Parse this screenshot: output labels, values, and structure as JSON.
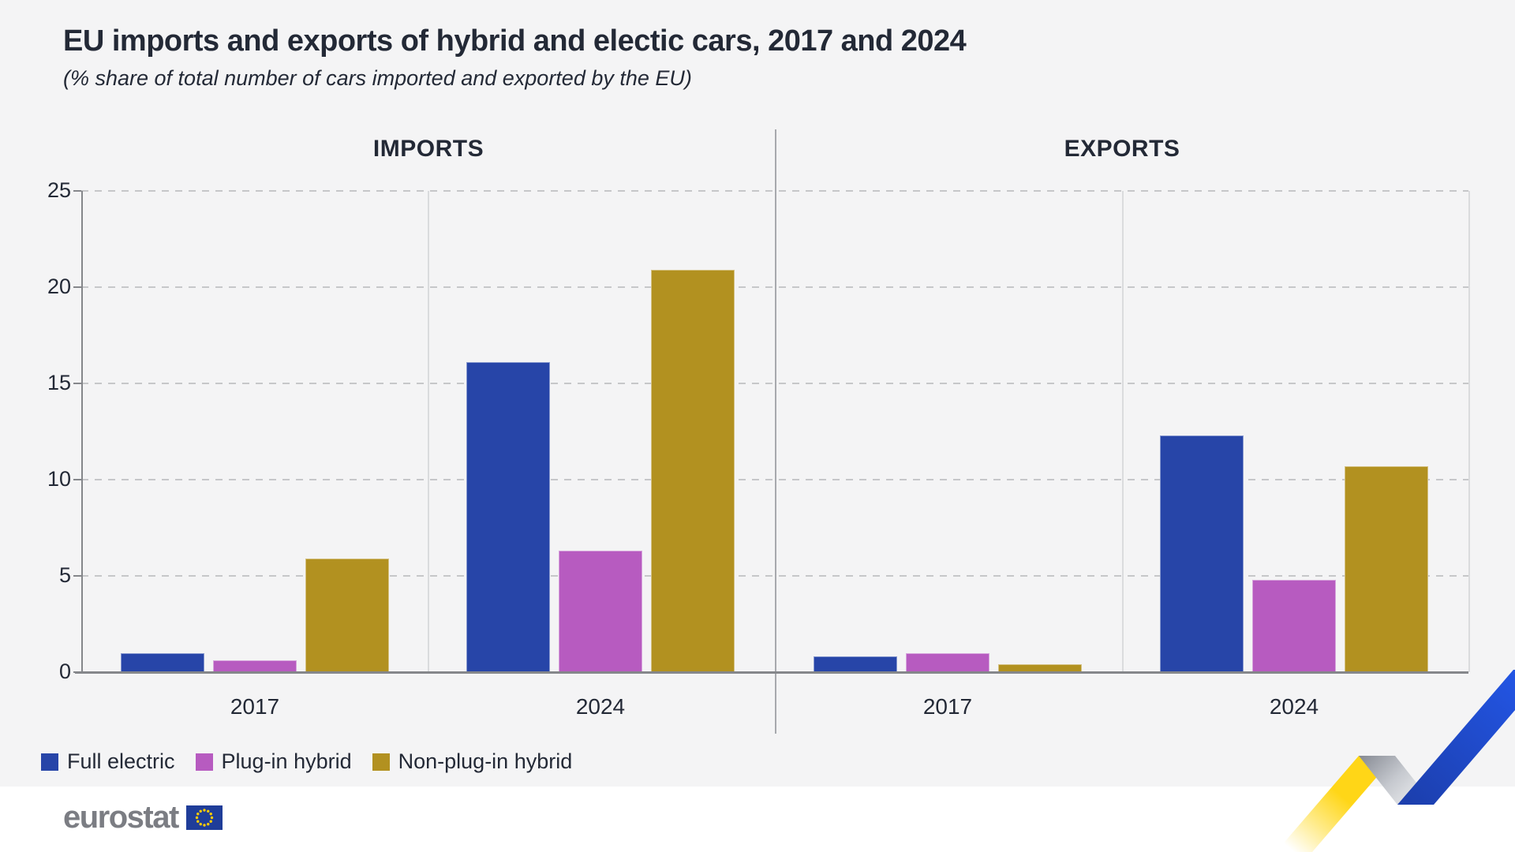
{
  "header": {
    "title": "EU imports and exports of hybrid and electic cars, 2017 and 2024",
    "subtitle": "(% share of total number of cars imported and exported by the EU)"
  },
  "footer": {
    "logo_text": "eurostat"
  },
  "colors": {
    "background": "#f4f4f5",
    "text": "#232936",
    "axis": "#85878b",
    "gridline": "#c6c7c9",
    "ribbon_yellow": "#ffd617",
    "ribbon_blue": "#2356e6",
    "flag_blue": "#1f3d99",
    "flag_stars": "#ffcc00"
  },
  "chart_data": {
    "type": "bar",
    "title": "EU imports and exports of hybrid and electic cars, 2017 and 2024",
    "subtitle": "(% share of total number of cars imported and exported by the EU)",
    "ylabel": "",
    "xlabel": "",
    "ylim": [
      0,
      25
    ],
    "yticks": [
      0,
      5,
      10,
      15,
      20,
      25
    ],
    "grid": "dashed-horizontal",
    "legend_position": "bottom-left",
    "series": [
      {
        "name": "Full electric",
        "color": "#2745A8"
      },
      {
        "name": "Plug-in hybrid",
        "color": "#B75BC0"
      },
      {
        "name": "Non-plug-in hybrid",
        "color": "#B29120"
      }
    ],
    "panels": [
      {
        "label": "IMPORTS",
        "groups": [
          {
            "label": "2017",
            "values": [
              1.0,
              0.6,
              5.9
            ]
          },
          {
            "label": "2024",
            "values": [
              16.1,
              6.3,
              20.9
            ]
          }
        ]
      },
      {
        "label": "EXPORTS",
        "groups": [
          {
            "label": "2017",
            "values": [
              0.8,
              1.0,
              0.4
            ]
          },
          {
            "label": "2024",
            "values": [
              12.3,
              4.8,
              10.7
            ]
          }
        ]
      }
    ]
  }
}
